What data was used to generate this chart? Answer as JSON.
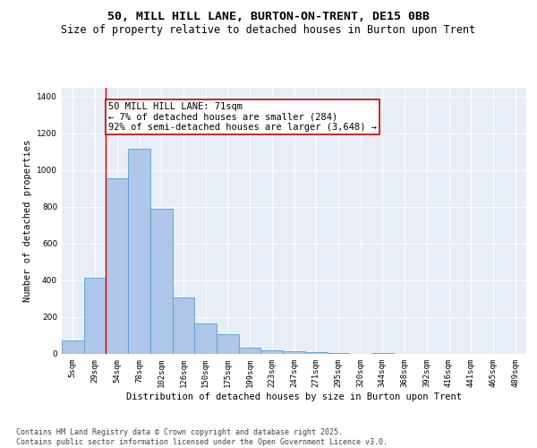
{
  "title": "50, MILL HILL LANE, BURTON-ON-TRENT, DE15 0BB",
  "subtitle": "Size of property relative to detached houses in Burton upon Trent",
  "xlabel": "Distribution of detached houses by size in Burton upon Trent",
  "ylabel": "Number of detached properties",
  "footnote": "Contains HM Land Registry data © Crown copyright and database right 2025.\nContains public sector information licensed under the Open Government Licence v3.0.",
  "categories": [
    "5sqm",
    "29sqm",
    "54sqm",
    "78sqm",
    "102sqm",
    "126sqm",
    "150sqm",
    "175sqm",
    "199sqm",
    "223sqm",
    "247sqm",
    "271sqm",
    "295sqm",
    "320sqm",
    "344sqm",
    "368sqm",
    "392sqm",
    "416sqm",
    "441sqm",
    "465sqm",
    "489sqm"
  ],
  "values": [
    75,
    415,
    955,
    1115,
    790,
    305,
    165,
    105,
    35,
    20,
    15,
    10,
    5,
    0,
    5,
    0,
    0,
    0,
    0,
    0,
    0
  ],
  "bar_color": "#aec6e8",
  "bar_edge_color": "#5a9fd4",
  "vline_x": 1.5,
  "vline_color": "#cc0000",
  "annotation_text": "50 MILL HILL LANE: 71sqm\n← 7% of detached houses are smaller (284)\n92% of semi-detached houses are larger (3,648) →",
  "ylim": [
    0,
    1450
  ],
  "yticks": [
    0,
    200,
    400,
    600,
    800,
    1000,
    1200,
    1400
  ],
  "bg_color": "#e8eef7",
  "title_fontsize": 9.5,
  "subtitle_fontsize": 8.5,
  "annotation_fontsize": 7.5,
  "axis_label_fontsize": 7.5,
  "tick_fontsize": 6.5,
  "footnote_fontsize": 6.0
}
